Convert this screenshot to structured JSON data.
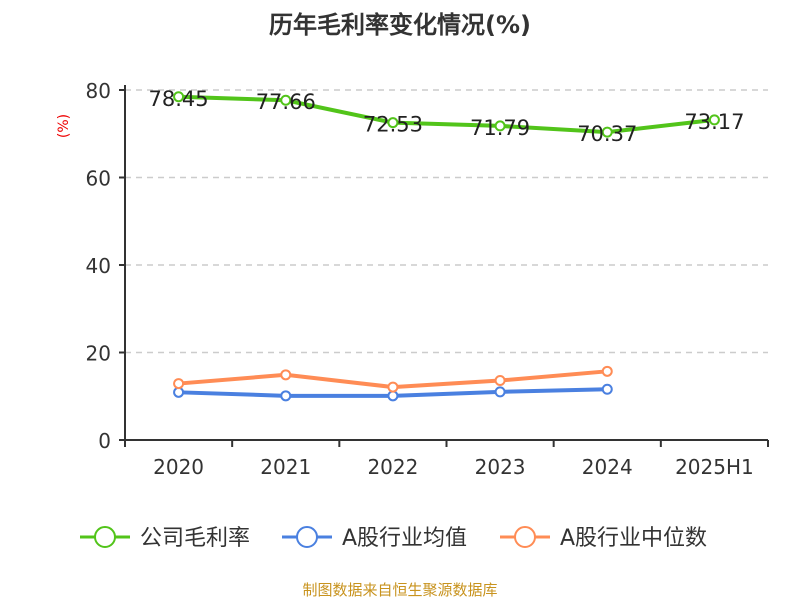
{
  "chart_data": {
    "type": "line",
    "title": "历年毛利率变化情况(%)",
    "ylabel": "(%)",
    "xlabel": "",
    "ylim": [
      0,
      80
    ],
    "yticks": [
      "0",
      "20",
      "40",
      "60",
      "80"
    ],
    "categories": [
      "2020",
      "2021",
      "2022",
      "2023",
      "2024",
      "2025H1"
    ],
    "grid": true,
    "legend_position": "bottom",
    "series": [
      {
        "name": "公司毛利率",
        "color": "#52c41a",
        "values": [
          78.45,
          77.66,
          72.53,
          71.79,
          70.37,
          73.17
        ],
        "labels": [
          "78.45",
          "77.66",
          "72.53",
          "71.79",
          "70.37",
          "73.17"
        ]
      },
      {
        "name": "A股行业均值",
        "color": "#4a80e0",
        "values": [
          10.9,
          10.1,
          10.1,
          11.0,
          11.6,
          null
        ]
      },
      {
        "name": "A股行业中位数",
        "color": "#ff8c55",
        "values": [
          12.9,
          14.9,
          12.1,
          13.6,
          15.7,
          null
        ]
      }
    ]
  },
  "footer": "制图数据来自恒生聚源数据库"
}
